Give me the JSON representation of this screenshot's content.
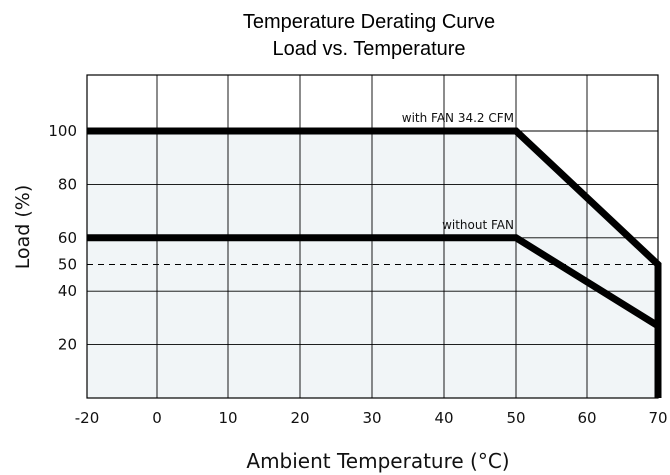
{
  "chart_data": {
    "type": "line",
    "title": "Temperature Derating Curve",
    "subtitle": "Load vs. Temperature",
    "xlabel": "Ambient Temperature (°C)",
    "ylabel": "Load (%)",
    "xlim": [
      -20,
      71
    ],
    "ylim": [
      0,
      120
    ],
    "x_ticks": [
      -20,
      0,
      10,
      20,
      30,
      40,
      50,
      60,
      70
    ],
    "x_tick_labels": [
      "-20",
      "0",
      "10",
      "20",
      "30",
      "40",
      "50",
      "60",
      "70"
    ],
    "y_ticks": [
      20,
      40,
      50,
      60,
      80,
      100
    ],
    "y_tick_labels": [
      "20",
      "40",
      "50",
      "60",
      "80",
      "100"
    ],
    "grid": true,
    "reference_line": {
      "y": 50,
      "style": "dashed"
    },
    "series": [
      {
        "name": "with FAN 34.2 CFM",
        "x": [
          -20,
          50,
          70,
          70
        ],
        "y": [
          100,
          100,
          50,
          0
        ],
        "color": "#000000"
      },
      {
        "name": "without FAN",
        "x": [
          -20,
          50,
          70
        ],
        "y": [
          60,
          60,
          27
        ],
        "color": "#000000"
      }
    ],
    "annotations": [
      {
        "text": "with FAN 34.2 CFM",
        "x": 50,
        "y": 100,
        "series": 0
      },
      {
        "text": "without FAN",
        "x": 50,
        "y": 60,
        "series": 1
      }
    ],
    "colors": {
      "plot_fill": "#f1f5f7",
      "grid": "#000000",
      "line": "#000000"
    }
  }
}
